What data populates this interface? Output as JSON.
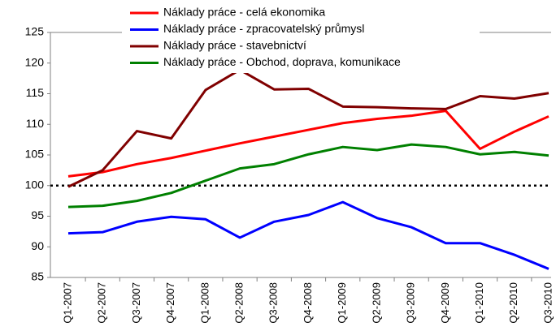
{
  "chart_data": {
    "type": "line",
    "categories": [
      "Q1-2007",
      "Q2-2007",
      "Q3-2007",
      "Q4-2007",
      "Q1-2008",
      "Q2-2008",
      "Q3-2008",
      "Q4-2008",
      "Q1-2009",
      "Q2-2009",
      "Q3-2009",
      "Q4-2009",
      "Q1-2010",
      "Q2-2010",
      "Q3-2010"
    ],
    "series": [
      {
        "name": "Náklady práce - celá ekonomika",
        "color": "#ff0000",
        "values": [
          101.5,
          102.2,
          103.5,
          104.5,
          105.7,
          106.9,
          108,
          109.1,
          110.2,
          110.9,
          111.4,
          112.2,
          106,
          108.8,
          111.3
        ]
      },
      {
        "name": "Náklady práce - zpracovatelský průmysl",
        "color": "#0000ff",
        "values": [
          92.2,
          92.4,
          94.1,
          94.9,
          94.5,
          91.5,
          94.1,
          95.2,
          97.3,
          94.7,
          93.2,
          90.6,
          90.6,
          88.7,
          86.4
        ]
      },
      {
        "name": "Náklady práce - stavebnictví",
        "color": "#800000",
        "values": [
          99.8,
          102.5,
          108.9,
          107.7,
          115.6,
          118.9,
          115.7,
          115.8,
          112.9,
          112.8,
          112.6,
          112.5,
          114.6,
          114.2,
          115.1
        ]
      },
      {
        "name": "Náklady práce - Obchod, doprava, komunikace",
        "color": "#008000",
        "values": [
          96.5,
          96.7,
          97.5,
          98.8,
          100.8,
          102.8,
          103.5,
          105.1,
          106.3,
          105.8,
          106.7,
          106.3,
          105.1,
          105.5,
          104.9
        ]
      }
    ],
    "ylim": [
      85,
      125
    ],
    "yticks": [
      85,
      90,
      95,
      100,
      105,
      110,
      115,
      120,
      125
    ],
    "reference_line": 100,
    "legend": "top"
  }
}
